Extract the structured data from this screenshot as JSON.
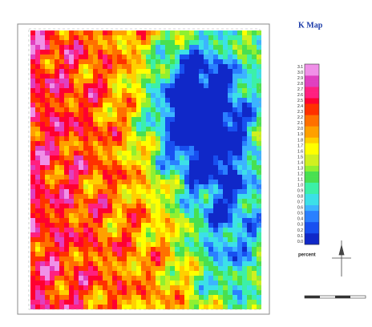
{
  "title": "K Map",
  "legend": {
    "unit": "percent",
    "labels": [
      "0.0",
      "0.1",
      "0.2",
      "0.3",
      "0.4",
      "0.5",
      "0.6",
      "0.7",
      "0.8",
      "0.9",
      "1.0",
      "1.1",
      "1.2",
      "1.3",
      "1.4",
      "1.5",
      "1.6",
      "1.7",
      "1.8",
      "1.9",
      "2.0",
      "2.1",
      "2.2",
      "2.3",
      "2.4",
      "2.5",
      "2.6",
      "2.7",
      "2.8",
      "2.9",
      "3.0",
      "3.1"
    ],
    "colors": [
      "#1028c8",
      "#1850f0",
      "#2a80ff",
      "#3cb4ff",
      "#3ce0e8",
      "#3cf0a8",
      "#48e050",
      "#90f030",
      "#d0f020",
      "#ffff00",
      "#ffd000",
      "#ffa000",
      "#ff7000",
      "#ff3000",
      "#ff0030",
      "#ff2080",
      "#e040c0",
      "#f090e8"
    ]
  }
}
